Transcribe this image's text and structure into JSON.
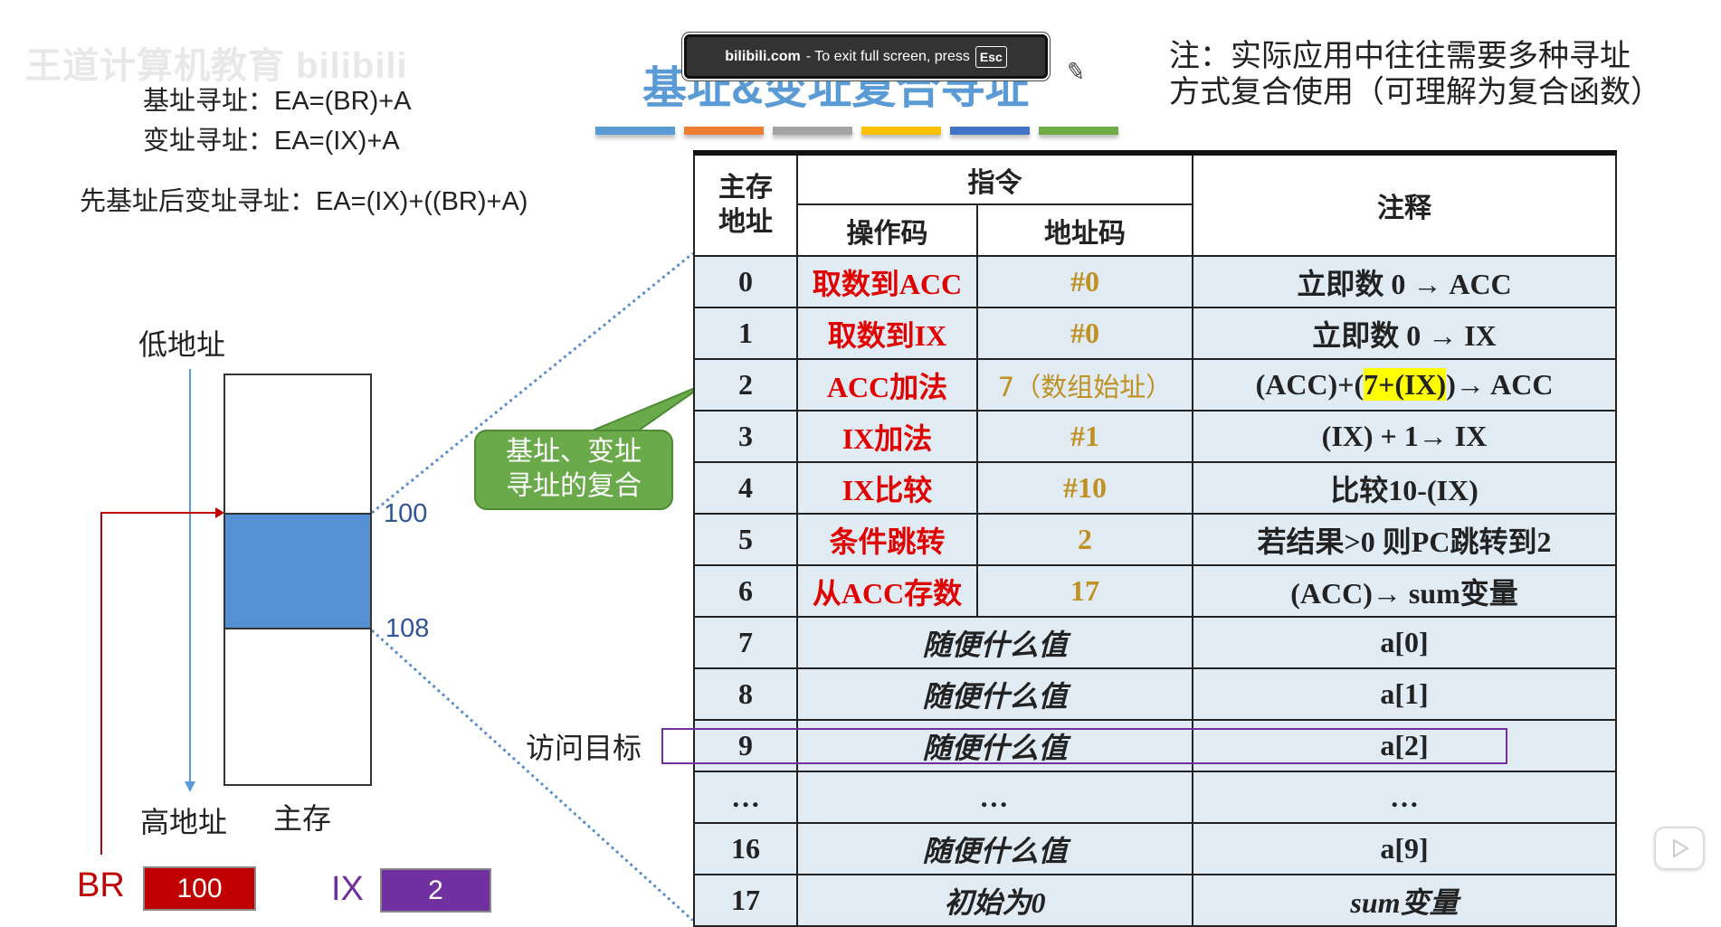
{
  "watermark": "王道计算机教育 bilibili",
  "formulas": {
    "base": "基址寻址：EA=(BR)+A",
    "index": "变址寻址：EA=(IX)+A",
    "combined": "先基址后变址寻址：EA=(IX)+((BR)+A)"
  },
  "title": "基址&变址复合寻址",
  "toast": {
    "site": "bilibili.com",
    "text": "- To exit full screen, press",
    "key": "Esc"
  },
  "note": [
    "注：实际应用中往往需要多种寻址",
    "方式复合使用（可理解为复合函数）"
  ],
  "bar_colors": [
    "#5b9bd5",
    "#ed7d31",
    "#a5a5a5",
    "#ffc000",
    "#4472c4",
    "#70ad47"
  ],
  "table": {
    "headers": {
      "addr": "主存地址",
      "instr": "指令",
      "opcode": "操作码",
      "addrcode": "地址码",
      "comment": "注释"
    },
    "rows": [
      {
        "addr": "0",
        "op": "取数到ACC",
        "ad": "#0",
        "note": "立即数 0 → ACC"
      },
      {
        "addr": "1",
        "op": "取数到IX",
        "ad": "#0",
        "note": "立即数 0 → IX"
      },
      {
        "addr": "2",
        "op": "ACC加法",
        "ad": "7（数组始址）",
        "note_pre": "(ACC)+(",
        "note_hl": "7+(IX)",
        "note_post": ")→ ACC"
      },
      {
        "addr": "3",
        "op": "IX加法",
        "ad": "#1",
        "note": "(IX) + 1→ IX"
      },
      {
        "addr": "4",
        "op": "IX比较",
        "ad": "#10",
        "note": "比较10-(IX)"
      },
      {
        "addr": "5",
        "op": "条件跳转",
        "ad": "2",
        "note": "若结果>0 则PC跳转到2"
      },
      {
        "addr": "6",
        "op": "从ACC存数",
        "ad": "17",
        "note": "(ACC)→ sum变量"
      },
      {
        "addr": "7",
        "val": "随便什么值",
        "note": "a[0]"
      },
      {
        "addr": "8",
        "val": "随便什么值",
        "note": "a[1]"
      },
      {
        "addr": "9",
        "val": "随便什么值",
        "note": "a[2]"
      },
      {
        "addr": "…",
        "val": "…",
        "note": "…"
      },
      {
        "addr": "16",
        "val": "随便什么值",
        "note": "a[9]"
      },
      {
        "addr": "17",
        "val": "初始为0",
        "note": "sum变量"
      }
    ]
  },
  "memory": {
    "low": "低地址",
    "high": "高地址",
    "label": "主存",
    "a100": "100",
    "a108": "108"
  },
  "callout": [
    "基址、变址",
    "寻址的复合"
  ],
  "target_label": "访问目标",
  "registers": {
    "br_label": "BR",
    "br_value": "100",
    "ix_label": "IX",
    "ix_value": "2",
    "br_color": "#c00000",
    "ix_color": "#7030a0"
  }
}
